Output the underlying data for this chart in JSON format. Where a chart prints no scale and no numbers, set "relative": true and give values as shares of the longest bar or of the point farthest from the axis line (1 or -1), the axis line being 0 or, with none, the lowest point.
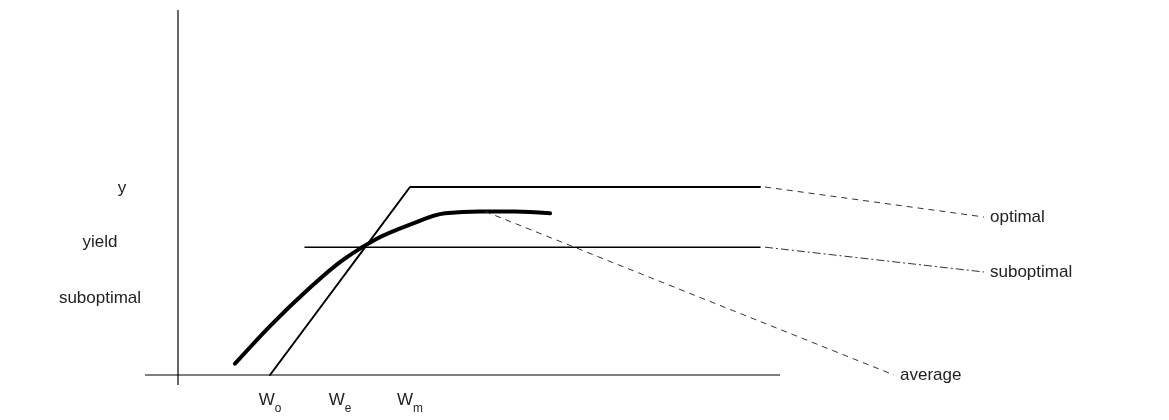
{
  "chart_data": {
    "type": "line",
    "relative": true,
    "categories": [
      null,
      null,
      null,
      "W$_{o}$",
      null,
      "W$_{e}$",
      null,
      "W$_{m}$",
      null,
      null,
      null,
      null,
      null,
      null,
      null,
      null,
      null,
      null
    ],
    "series": [
      {
        "name": "optimal",
        "color": "#000000",
        "values": [
          null,
          null,
          null,
          0,
          null,
          0.5,
          null,
          1,
          1,
          1,
          1,
          1,
          1,
          1,
          1,
          1,
          1,
          1
        ]
      },
      {
        "name": "suboptimal",
        "color": "#000000",
        "values": [
          null,
          null,
          null,
          null,
          0.68,
          0.68,
          0.68,
          0.68,
          0.68,
          0.68,
          0.68,
          0.68,
          0.68,
          0.68,
          0.68,
          0.68,
          0.68,
          0.68
        ]
      },
      {
        "name": "average",
        "color": "#000000",
        "values": [
          null,
          null,
          0.06,
          0.26,
          0.44,
          0.6,
          0.72,
          0.8,
          0.86,
          0.87,
          0.87,
          0.86,
          null,
          null,
          null,
          null,
          null,
          null
        ]
      }
    ],
    "annotations": [
      "y",
      "yield",
      "suboptimal"
    ]
  }
}
